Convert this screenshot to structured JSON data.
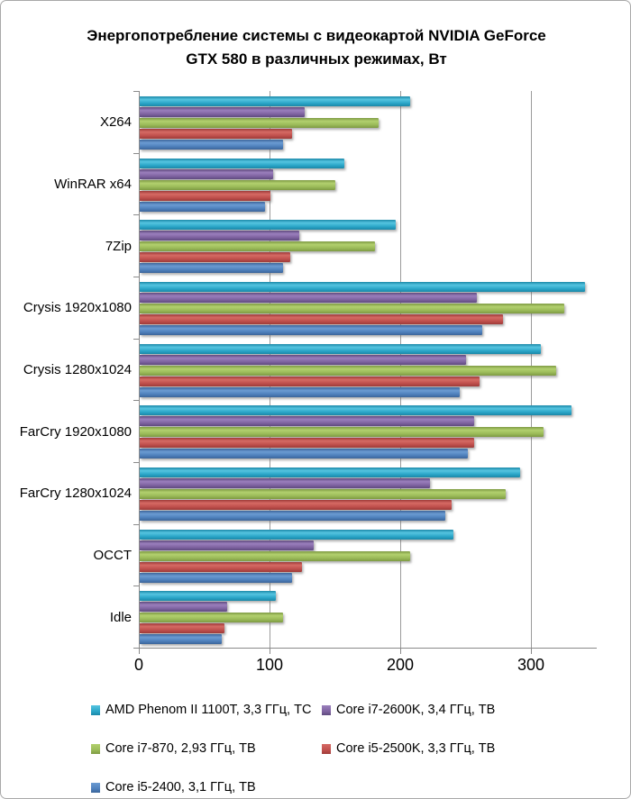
{
  "window": {
    "background": "#ffffff",
    "border_color": "#a8a8a8"
  },
  "chart_data": {
    "type": "bar",
    "orientation": "horizontal",
    "title": "Энергопотребление системы с видеокартой NVIDIA GeForce GTX 580 в различных режимах, Вт",
    "title_lines": [
      "Энергопотребление системы с видеокартой NVIDIA GeForce",
      "GTX 580 в различных режимах, Вт"
    ],
    "unit": "Вт",
    "categories": [
      "X264",
      "WinRAR x64",
      "7Zip",
      "Crysis 1920x1080",
      "Crysis 1280x1024",
      "FarCry 1920x1080",
      "FarCry 1280x1024",
      "OCCT",
      "Idle"
    ],
    "series": [
      {
        "name": "AMD Phenom II 1100T, 3,3 ГГц, ТС",
        "color": {
          "base": "#2ba6c8",
          "light": "#55c4e0",
          "dark": "#1b88a8"
        },
        "values": [
          207,
          157,
          196,
          341,
          307,
          331,
          291,
          240,
          104
        ]
      },
      {
        "name": "Core i7-2600K, 3,4 ГГц, ТВ",
        "color": {
          "base": "#8064a2",
          "light": "#9a7fbc",
          "dark": "#5f4a7e"
        },
        "values": [
          126,
          102,
          122,
          258,
          250,
          256,
          222,
          133,
          67
        ]
      },
      {
        "name": "Core i7-870, 2,93 ГГц, ТВ",
        "color": {
          "base": "#9bbb59",
          "light": "#b2d06e",
          "dark": "#7e9a43"
        },
        "values": [
          183,
          150,
          180,
          325,
          319,
          309,
          280,
          207,
          110
        ]
      },
      {
        "name": "Core i5-2500K, 3,3 ГГц, ТВ",
        "color": {
          "base": "#c0504d",
          "light": "#d66a64",
          "dark": "#9e3b39"
        },
        "values": [
          117,
          100,
          115,
          278,
          260,
          256,
          239,
          124,
          65
        ]
      },
      {
        "name": "Core i5-2400, 3,1 ГГц, ТВ",
        "color": {
          "base": "#4f81bd",
          "light": "#6b9bd2",
          "dark": "#3c659a"
        },
        "values": [
          110,
          96,
          110,
          262,
          245,
          251,
          234,
          117,
          63
        ]
      }
    ],
    "xlim": [
      0,
      350
    ],
    "x_ticks": [
      0,
      100,
      200,
      300
    ],
    "grid": true,
    "grid_color": "#9b9b9b",
    "axis_color": "#8a8a8a",
    "legend_position": "bottom"
  }
}
